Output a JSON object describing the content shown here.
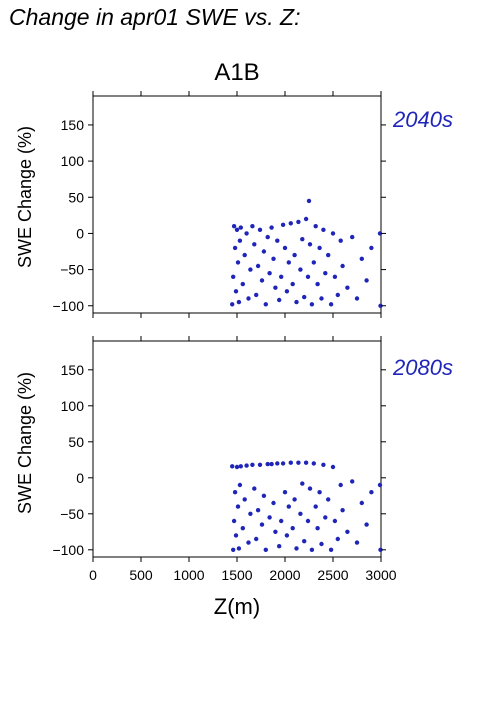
{
  "figure_title": "Change in apr01 SWE vs. Z:",
  "scenario": "A1B",
  "colors": {
    "points": "#1f25b8",
    "period_label": "#1f25b8"
  },
  "chart_data": [
    {
      "type": "scatter",
      "panel_label": "2040s",
      "ylabel": "SWE Change (%)",
      "xlabel": "",
      "xlim": [
        0,
        3000
      ],
      "ylim": [
        -110,
        190
      ],
      "x_ticks": [
        0,
        500,
        1000,
        1500,
        2000,
        2500,
        3000
      ],
      "y_ticks": [
        -100,
        -50,
        0,
        50,
        100,
        150
      ],
      "y_tick_labels": [
        "−100",
        "−50",
        "0",
        "50",
        "100",
        "150"
      ],
      "grid": false,
      "series": [
        {
          "points": [
            [
              1450,
              -98
            ],
            [
              1460,
              -60
            ],
            [
              1470,
              10
            ],
            [
              1480,
              -20
            ],
            [
              1490,
              -80
            ],
            [
              1500,
              5
            ],
            [
              1510,
              -40
            ],
            [
              1520,
              -95
            ],
            [
              1530,
              -10
            ],
            [
              1540,
              8
            ],
            [
              1560,
              -70
            ],
            [
              1580,
              -30
            ],
            [
              1600,
              0
            ],
            [
              1620,
              -90
            ],
            [
              1640,
              -50
            ],
            [
              1660,
              10
            ],
            [
              1680,
              -15
            ],
            [
              1700,
              -85
            ],
            [
              1720,
              -45
            ],
            [
              1740,
              5
            ],
            [
              1760,
              -65
            ],
            [
              1780,
              -25
            ],
            [
              1800,
              -98
            ],
            [
              1820,
              -5
            ],
            [
              1840,
              -55
            ],
            [
              1860,
              8
            ],
            [
              1880,
              -35
            ],
            [
              1900,
              -75
            ],
            [
              1920,
              -10
            ],
            [
              1940,
              -92
            ],
            [
              1960,
              -60
            ],
            [
              1980,
              12
            ],
            [
              2000,
              -20
            ],
            [
              2020,
              -80
            ],
            [
              2040,
              -40
            ],
            [
              2060,
              14
            ],
            [
              2080,
              -70
            ],
            [
              2100,
              -30
            ],
            [
              2120,
              -95
            ],
            [
              2140,
              16
            ],
            [
              2160,
              -50
            ],
            [
              2180,
              -8
            ],
            [
              2200,
              -88
            ],
            [
              2220,
              20
            ],
            [
              2240,
              -60
            ],
            [
              2250,
              45
            ],
            [
              2260,
              -15
            ],
            [
              2280,
              -98
            ],
            [
              2300,
              -40
            ],
            [
              2320,
              10
            ],
            [
              2340,
              -70
            ],
            [
              2360,
              -20
            ],
            [
              2380,
              -90
            ],
            [
              2400,
              5
            ],
            [
              2420,
              -55
            ],
            [
              2450,
              -30
            ],
            [
              2480,
              -98
            ],
            [
              2500,
              0
            ],
            [
              2520,
              -60
            ],
            [
              2550,
              -85
            ],
            [
              2580,
              -10
            ],
            [
              2600,
              -45
            ],
            [
              2650,
              -75
            ],
            [
              2700,
              -5
            ],
            [
              2750,
              -90
            ],
            [
              2800,
              -35
            ],
            [
              2850,
              -65
            ],
            [
              2900,
              -20
            ],
            [
              2990,
              0
            ],
            [
              2995,
              -100
            ]
          ]
        }
      ]
    },
    {
      "type": "scatter",
      "panel_label": "2080s",
      "ylabel": "SWE Change (%)",
      "xlabel": "Z(m)",
      "xlim": [
        0,
        3000
      ],
      "ylim": [
        -110,
        190
      ],
      "x_ticks": [
        0,
        500,
        1000,
        1500,
        2000,
        2500,
        3000
      ],
      "y_ticks": [
        -100,
        -50,
        0,
        50,
        100,
        150
      ],
      "y_tick_labels": [
        "−100",
        "−50",
        "0",
        "50",
        "100",
        "150"
      ],
      "grid": false,
      "series": [
        {
          "points": [
            [
              1450,
              16
            ],
            [
              1460,
              -100
            ],
            [
              1470,
              -60
            ],
            [
              1480,
              -20
            ],
            [
              1490,
              -80
            ],
            [
              1500,
              15
            ],
            [
              1510,
              -40
            ],
            [
              1520,
              -98
            ],
            [
              1530,
              -10
            ],
            [
              1540,
              16
            ],
            [
              1560,
              -70
            ],
            [
              1580,
              -30
            ],
            [
              1600,
              17
            ],
            [
              1620,
              -90
            ],
            [
              1640,
              -50
            ],
            [
              1660,
              18
            ],
            [
              1680,
              -15
            ],
            [
              1700,
              -85
            ],
            [
              1720,
              -45
            ],
            [
              1740,
              18
            ],
            [
              1760,
              -65
            ],
            [
              1780,
              -25
            ],
            [
              1800,
              -100
            ],
            [
              1820,
              19
            ],
            [
              1840,
              -55
            ],
            [
              1860,
              19
            ],
            [
              1880,
              -35
            ],
            [
              1900,
              -75
            ],
            [
              1920,
              20
            ],
            [
              1940,
              -95
            ],
            [
              1960,
              -60
            ],
            [
              1980,
              20
            ],
            [
              2000,
              -20
            ],
            [
              2020,
              -80
            ],
            [
              2040,
              -40
            ],
            [
              2060,
              21
            ],
            [
              2080,
              -70
            ],
            [
              2100,
              -30
            ],
            [
              2120,
              -98
            ],
            [
              2140,
              21
            ],
            [
              2160,
              -50
            ],
            [
              2180,
              -8
            ],
            [
              2200,
              -88
            ],
            [
              2220,
              21
            ],
            [
              2240,
              -60
            ],
            [
              2260,
              -15
            ],
            [
              2280,
              -100
            ],
            [
              2300,
              20
            ],
            [
              2320,
              -40
            ],
            [
              2340,
              -70
            ],
            [
              2360,
              -20
            ],
            [
              2380,
              -92
            ],
            [
              2400,
              18
            ],
            [
              2420,
              -55
            ],
            [
              2450,
              -30
            ],
            [
              2480,
              -100
            ],
            [
              2500,
              15
            ],
            [
              2520,
              -60
            ],
            [
              2550,
              -85
            ],
            [
              2580,
              -10
            ],
            [
              2600,
              -45
            ],
            [
              2650,
              -75
            ],
            [
              2700,
              -5
            ],
            [
              2750,
              -90
            ],
            [
              2800,
              -35
            ],
            [
              2850,
              -65
            ],
            [
              2900,
              -20
            ],
            [
              2990,
              -10
            ],
            [
              2995,
              -100
            ]
          ]
        }
      ]
    }
  ]
}
